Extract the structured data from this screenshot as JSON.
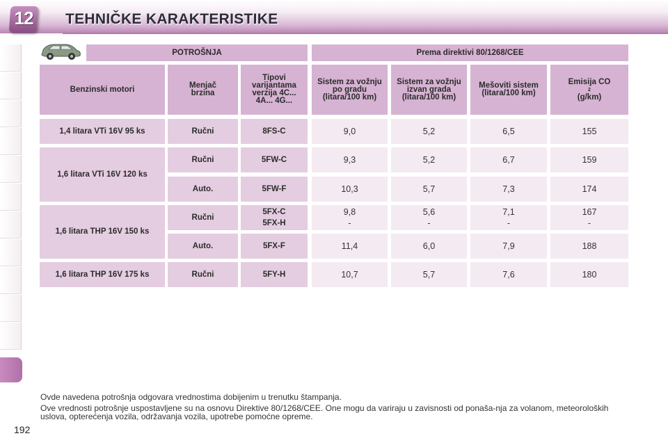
{
  "header": {
    "chapter_number": "12",
    "title": "TEHNIČKE KARAKTERISTIKE"
  },
  "icons": {
    "car": "car-icon"
  },
  "table": {
    "group_headers": [
      "POTROŠNJA",
      "Prema direktivi 80/1268/CEE"
    ],
    "column_headers": {
      "engine": "Benzinski motori",
      "gearbox": "Menjač brzina",
      "variants": "Tipovi varijantama verzija 4C... 4A... 4G...",
      "urban": "Sistem za vožnju po gradu (litara/100 km)",
      "extra_urban": "Sistem za vožnju izvan grada (litara/100 km)",
      "combined": "Mešoviti sistem (litara/100 km)",
      "co2": "Emisija CO",
      "co2_sub": "2",
      "co2_unit": "(g/km)"
    },
    "engines": [
      "1,4 litara VTi 16V 95 ks",
      "1,6 litara VTi 16V 120 ks",
      "1,6 litara THP 16V 150 ks",
      "1,6 litara THP 16V 175 ks"
    ],
    "rows": [
      {
        "gearbox": "Ručni",
        "variant": "8FS-C",
        "urban": "9,0",
        "extra_urban": "5,2",
        "combined": "6,5",
        "co2": "155"
      },
      {
        "gearbox": "Ručni",
        "variant": "5FW-C",
        "urban": "9,3",
        "extra_urban": "5,2",
        "combined": "6,7",
        "co2": "159"
      },
      {
        "gearbox": "Auto.",
        "variant": "5FW-F",
        "urban": "10,3",
        "extra_urban": "5,7",
        "combined": "7,3",
        "co2": "174"
      },
      {
        "gearbox": "Ručni",
        "variant": "5FX-C",
        "variant2": "5FX-H",
        "urban": "9,8",
        "urban2": "-",
        "extra_urban": "5,6",
        "extra_urban2": "-",
        "combined": "7,1",
        "combined2": "-",
        "co2": "167",
        "co22": "-"
      },
      {
        "gearbox": "Auto.",
        "variant": "5FX-F",
        "urban": "11,4",
        "extra_urban": "6,0",
        "combined": "7,9",
        "co2": "188"
      },
      {
        "gearbox": "Ručni",
        "variant": "5FY-H",
        "urban": "10,7",
        "extra_urban": "5,7",
        "combined": "7,6",
        "co2": "180"
      }
    ]
  },
  "footnotes": [
    "Ovde navedena potrošnja odgovara vrednostima dobijenim u trenutku štampanja.",
    "Ove vrednosti potrošnje uspostavljene su na osnovu Direktive 80/1268/CEE. One mogu da variraju u zavisnosti od ponaša-nja za volanom, meteoroloških uslova, opterećenja vozila, održavanja vozila, upotrebe pomoćne opreme."
  ],
  "page_number": "192",
  "colors": {
    "accent": "#b070a8",
    "header_cell": "#d6b3d2",
    "label_cell": "#e4cde0",
    "value_cell": "#f4eaf2"
  }
}
